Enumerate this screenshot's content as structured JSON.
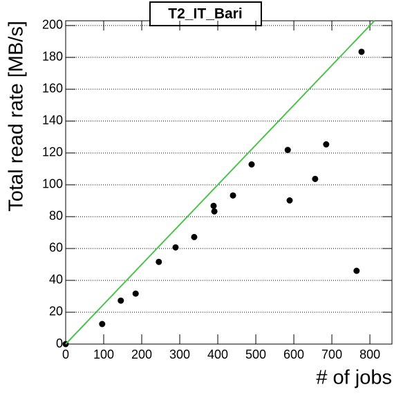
{
  "chart_data": {
    "type": "scatter",
    "title": "T2_IT_Bari",
    "x_label": "# of jobs",
    "y_label": "Total read rate [MB/s]",
    "xlim": [
      0,
      858
    ],
    "ylim": [
      0,
      203
    ],
    "xticks": [
      0,
      100,
      200,
      300,
      400,
      500,
      600,
      700,
      800
    ],
    "yticks": [
      0,
      20,
      40,
      60,
      80,
      100,
      120,
      140,
      160,
      180,
      200
    ],
    "grid": "y",
    "series": [
      {
        "type": "scatter",
        "color": "#000000",
        "x": [
          0,
          96,
          145,
          184,
          245,
          289,
          338,
          389,
          391,
          440,
          489,
          584,
          589,
          656,
          685,
          765,
          778
        ],
        "values": [
          0,
          12.6,
          27.3,
          31.7,
          51.6,
          60.7,
          67.2,
          86.8,
          83.3,
          93.3,
          112.8,
          121.9,
          90.2,
          103.7,
          125.4,
          46,
          183.5
        ]
      },
      {
        "type": "line",
        "color": "#4cc34c",
        "x": [
          0,
          812
        ],
        "values": [
          0,
          203
        ]
      }
    ]
  }
}
